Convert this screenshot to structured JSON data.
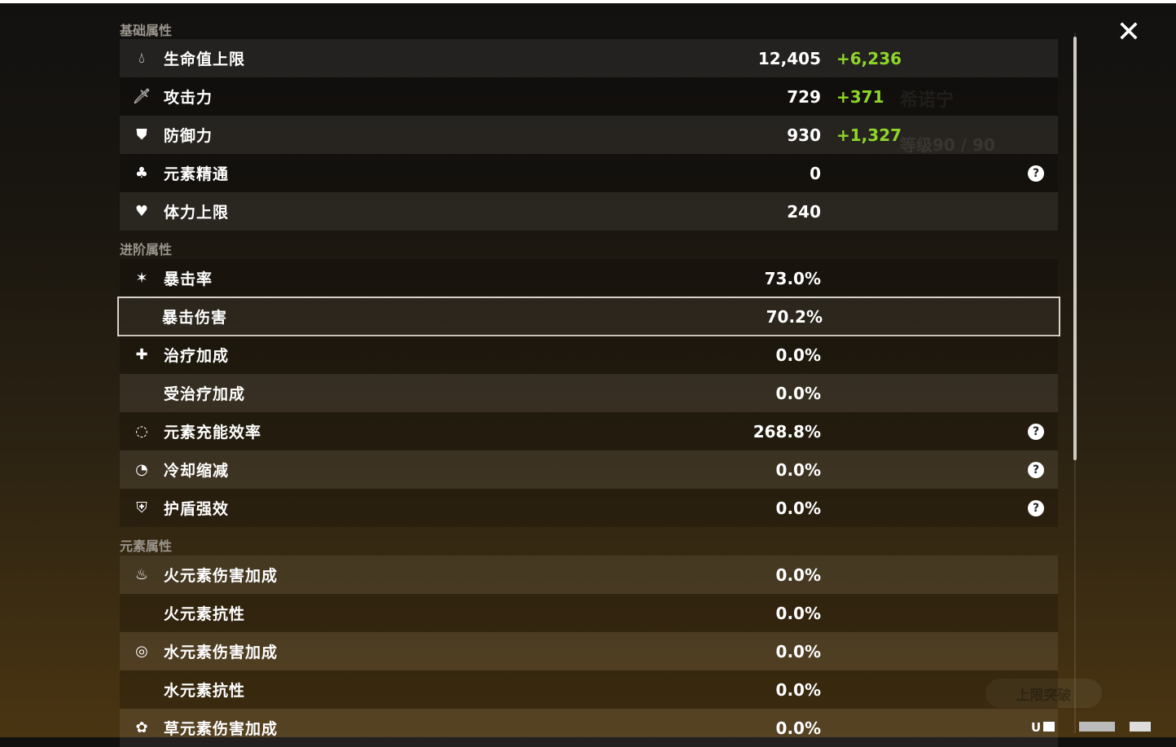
{
  "close_icon": "close-icon",
  "background": {
    "character_name": "希诺宁",
    "level": "等级90 / 90",
    "ascend_button": "上限突破"
  },
  "uid_label": "U",
  "sections": {
    "base": {
      "title": "基础属性",
      "rows": [
        {
          "icon": "hp-drop-icon",
          "label": "生命值上限",
          "value": "12,405",
          "bonus": "+6,236"
        },
        {
          "icon": "sword-icon",
          "label": "攻击力",
          "value": "729",
          "bonus": "+371"
        },
        {
          "icon": "shield-icon",
          "label": "防御力",
          "value": "930",
          "bonus": "+1,327"
        },
        {
          "icon": "elemental-mastery-icon",
          "label": "元素精通",
          "value": "0",
          "help": true
        },
        {
          "icon": "stamina-icon",
          "label": "体力上限",
          "value": "240"
        }
      ]
    },
    "advanced": {
      "title": "进阶属性",
      "rows": [
        {
          "icon": "crit-rate-icon",
          "label": "暴击率",
          "value": "73.0%"
        },
        {
          "label": "暴击伤害",
          "value": "70.2%",
          "selected": true
        },
        {
          "icon": "healing-cross-icon",
          "label": "治疗加成",
          "value": "0.0%"
        },
        {
          "label": "受治疗加成",
          "value": "0.0%"
        },
        {
          "icon": "energy-recharge-icon",
          "label": "元素充能效率",
          "value": "268.8%",
          "help": true
        },
        {
          "icon": "cooldown-icon",
          "label": "冷却缩减",
          "value": "0.0%",
          "help": true
        },
        {
          "icon": "shield-strength-icon",
          "label": "护盾强效",
          "value": "0.0%",
          "help": true
        }
      ]
    },
    "elemental": {
      "title": "元素属性",
      "rows": [
        {
          "icon": "pyro-icon",
          "label": "火元素伤害加成",
          "value": "0.0%"
        },
        {
          "label": "火元素抗性",
          "value": "0.0%"
        },
        {
          "icon": "hydro-icon",
          "label": "水元素伤害加成",
          "value": "0.0%"
        },
        {
          "label": "水元素抗性",
          "value": "0.0%"
        },
        {
          "icon": "dendro-icon",
          "label": "草元素伤害加成",
          "value": "0.0%"
        }
      ]
    }
  }
}
